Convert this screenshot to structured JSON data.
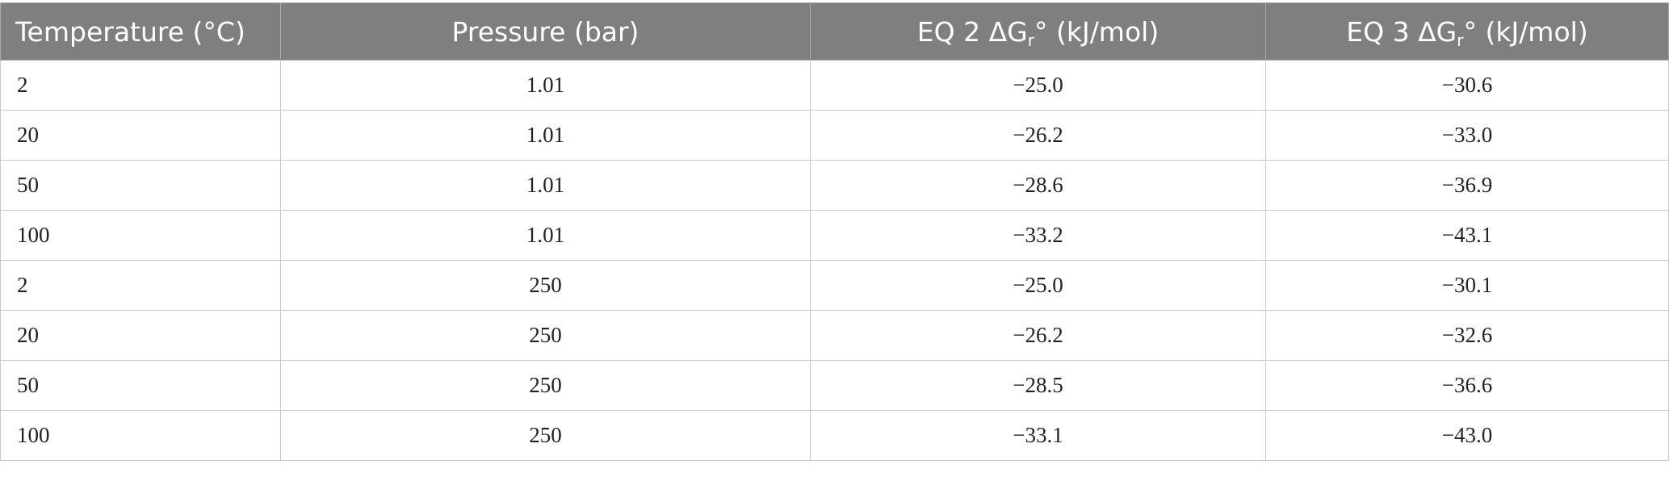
{
  "table": {
    "header": [
      {
        "text": "Temperature (°C)"
      },
      {
        "text": "Pressure (bar)"
      },
      {
        "text": "EQ 2 ΔG",
        "sub": "r",
        "tail": "° (kJ/mol)"
      },
      {
        "text": "EQ 3 ΔG",
        "sub": "r",
        "tail": "° (kJ/mol)"
      }
    ],
    "rows": [
      [
        "2",
        "1.01",
        "−25.0",
        "−30.6"
      ],
      [
        "20",
        "1.01",
        "−26.2",
        "−33.0"
      ],
      [
        "50",
        "1.01",
        "−28.6",
        "−36.9"
      ],
      [
        "100",
        "1.01",
        "−33.2",
        "−43.1"
      ],
      [
        "2",
        "250",
        "−25.0",
        "−30.1"
      ],
      [
        "20",
        "250",
        "−26.2",
        "−32.6"
      ],
      [
        "50",
        "250",
        "−28.5",
        "−36.6"
      ],
      [
        "100",
        "250",
        "−33.1",
        "−43.0"
      ]
    ]
  }
}
